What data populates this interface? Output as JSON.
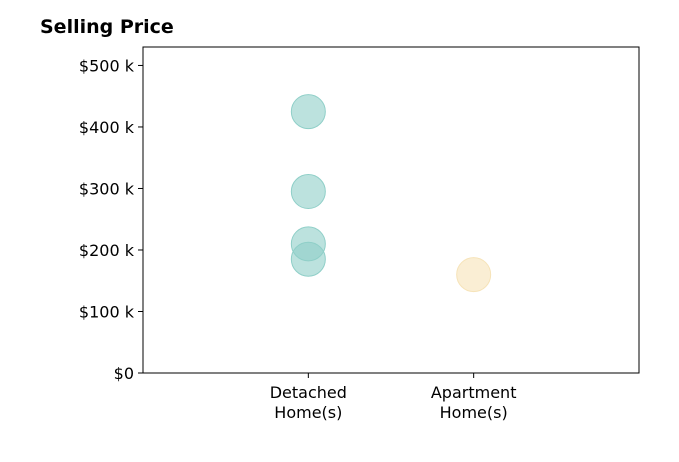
{
  "chart_data": {
    "type": "scatter",
    "title": "Selling Price",
    "xlabel": "",
    "ylabel": "",
    "categories": [
      [
        "Detached",
        "Home(s)"
      ],
      [
        "Apartment",
        "Home(s)"
      ]
    ],
    "x_range": [
      -1,
      2
    ],
    "ylim": [
      0,
      530
    ],
    "y_ticks": [
      0,
      100,
      200,
      300,
      400,
      500
    ],
    "y_tick_labels": [
      "$0",
      "$100 k",
      "$200 k",
      "$300 k",
      "$400 k",
      "$500 k"
    ],
    "grid": false,
    "series": [
      {
        "category_index": 0,
        "color": "#8fcfc8",
        "values": [
          425,
          295,
          210,
          185
        ]
      },
      {
        "category_index": 1,
        "color": "#f6e3b8",
        "values": [
          160
        ]
      }
    ]
  }
}
